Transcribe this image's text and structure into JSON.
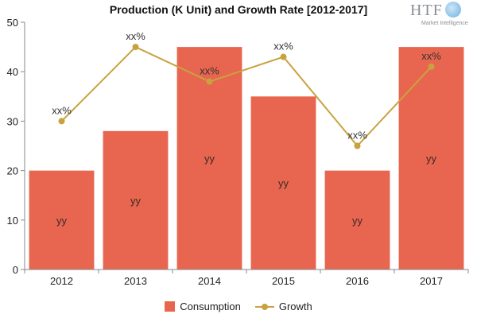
{
  "logo": {
    "main": "HTF",
    "sub": "Market Intelligence"
  },
  "chart_data": {
    "type": "bar",
    "title": "Production (K Unit) and Growth Rate [2012-2017]",
    "categories": [
      "2012",
      "2013",
      "2014",
      "2015",
      "2016",
      "2017"
    ],
    "ylim": [
      0,
      50
    ],
    "yticks": [
      0,
      10,
      20,
      30,
      40,
      50
    ],
    "grid": false,
    "legend_position": "bottom",
    "series": [
      {
        "name": "Consumption",
        "type": "bar",
        "color": "#e8664f",
        "values": [
          20,
          28,
          45,
          35,
          20,
          45
        ],
        "labels": [
          "yy",
          "yy",
          "yy",
          "yy",
          "yy",
          "yy"
        ]
      },
      {
        "name": "Growth",
        "type": "line",
        "color": "#c9a23f",
        "values": [
          30,
          45,
          38,
          43,
          25,
          41
        ],
        "labels": [
          "xx%",
          "xx%",
          "xx%",
          "xx%",
          "xx%",
          "xx%"
        ]
      }
    ]
  }
}
